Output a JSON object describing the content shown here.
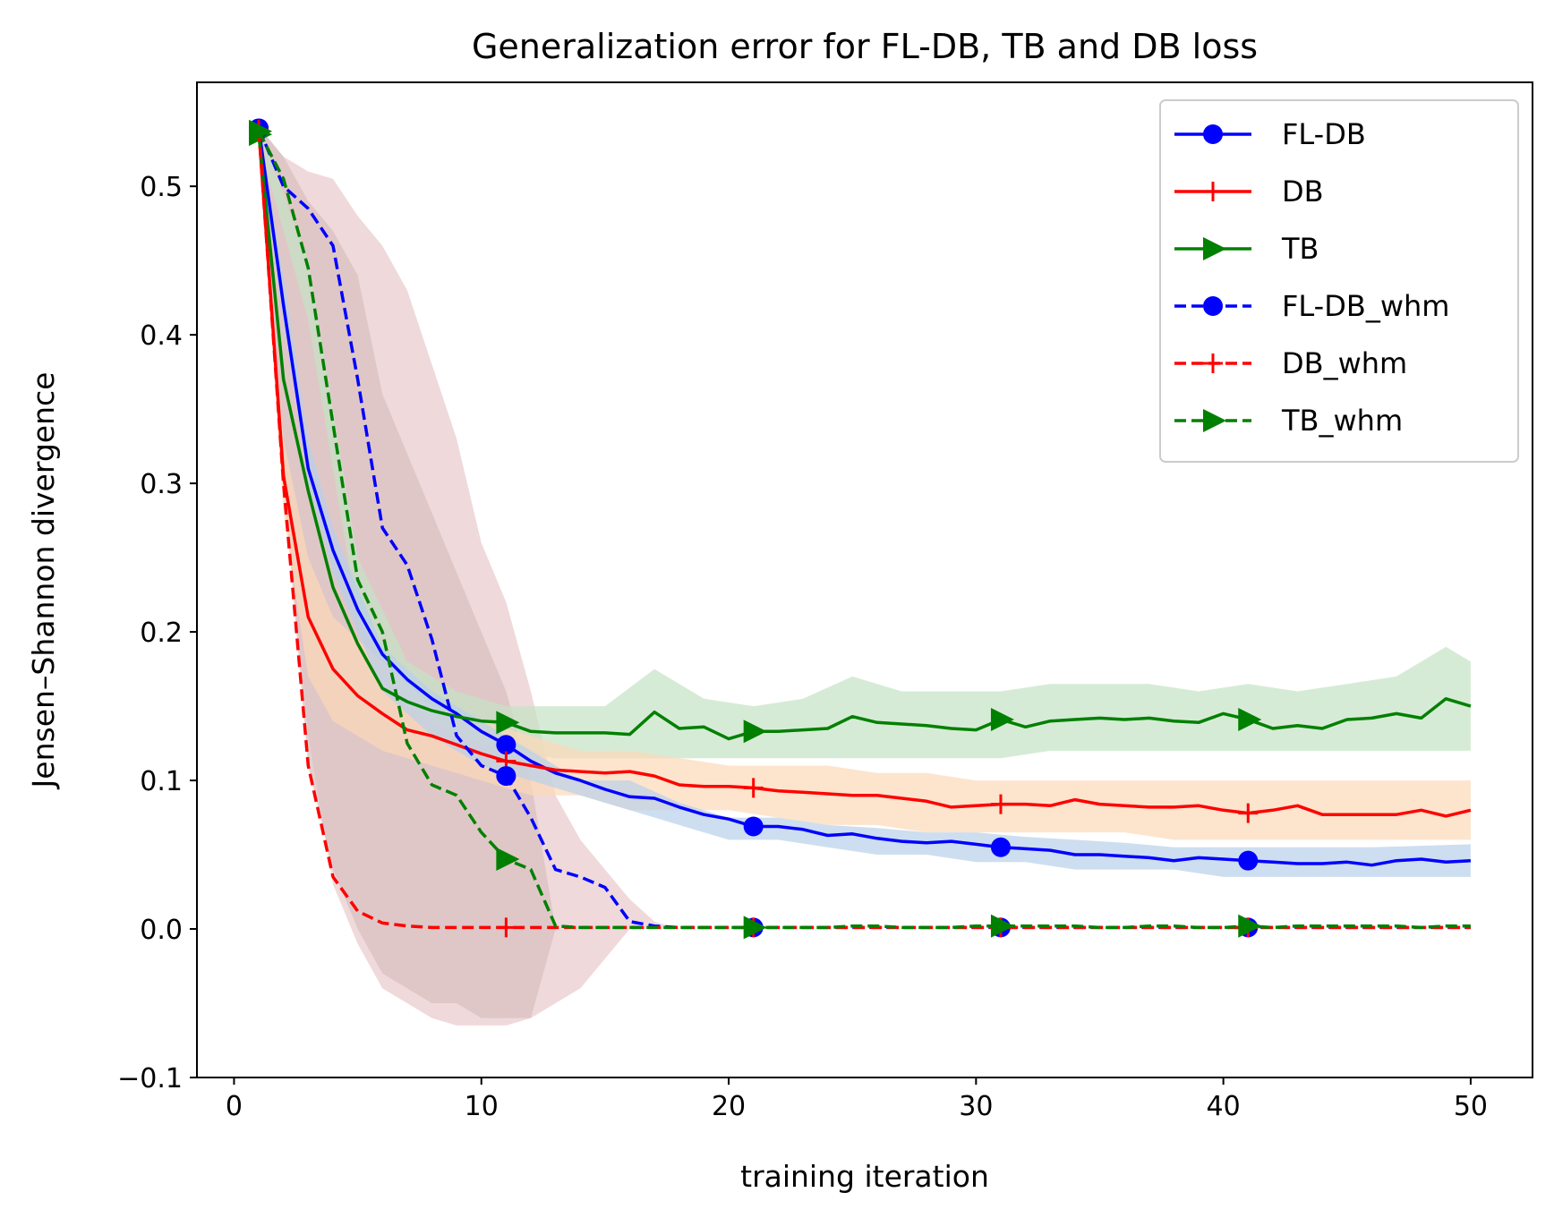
{
  "chart_data": {
    "type": "line",
    "title": "Generalization error for FL-DB, TB and DB loss",
    "xlabel": "training iteration",
    "ylabel": "Jensen–Shannon divergence",
    "xlim": [
      -1.5,
      52.5
    ],
    "ylim": [
      -0.1,
      0.57
    ],
    "xticks": [
      0,
      10,
      20,
      30,
      40,
      50
    ],
    "yticks": [
      -0.1,
      0.0,
      0.1,
      0.2,
      0.3,
      0.4,
      0.5
    ],
    "ytick_labels": [
      "−0.1",
      "0.0",
      "0.1",
      "0.2",
      "0.3",
      "0.4",
      "0.5"
    ],
    "legend_position": "top-right",
    "bands": [
      {
        "name": "FL-DB_whm band",
        "color": "#e8c9cc",
        "x": [
          1,
          2,
          3,
          4,
          5,
          6,
          7,
          8,
          9,
          10,
          11,
          12,
          13,
          14,
          15,
          16,
          17,
          18
        ],
        "lower": [
          0.54,
          0.3,
          0.13,
          0.03,
          -0.01,
          -0.04,
          -0.05,
          -0.06,
          -0.065,
          -0.065,
          -0.065,
          -0.06,
          -0.05,
          -0.04,
          -0.02,
          0,
          0,
          0
        ],
        "upper": [
          0.54,
          0.52,
          0.51,
          0.505,
          0.48,
          0.46,
          0.43,
          0.38,
          0.33,
          0.26,
          0.22,
          0.16,
          0.09,
          0.06,
          0.04,
          0.02,
          0.005,
          0
        ]
      },
      {
        "name": "DB_whm band",
        "color": "#d8bfbf",
        "x": [
          1,
          2,
          3,
          4,
          5,
          6,
          7,
          8,
          9,
          10,
          11,
          12,
          13
        ],
        "lower": [
          0.54,
          0.3,
          0.11,
          0.04,
          0.0,
          -0.03,
          -0.04,
          -0.05,
          -0.05,
          -0.06,
          -0.06,
          -0.06,
          0
        ],
        "upper": [
          0.54,
          0.52,
          0.49,
          0.47,
          0.44,
          0.36,
          0.32,
          0.28,
          0.24,
          0.2,
          0.16,
          0.1,
          0
        ]
      },
      {
        "name": "TB band",
        "color": "#c5e3c5",
        "x": [
          1,
          3,
          5,
          7,
          9,
          11,
          13,
          15,
          17,
          19,
          21,
          23,
          25,
          27,
          29,
          31,
          33,
          35,
          37,
          39,
          41,
          43,
          45,
          47,
          49,
          50
        ],
        "lower": [
          0.53,
          0.41,
          0.21,
          0.15,
          0.13,
          0.12,
          0.115,
          0.115,
          0.115,
          0.115,
          0.115,
          0.115,
          0.115,
          0.115,
          0.115,
          0.115,
          0.12,
          0.12,
          0.12,
          0.12,
          0.12,
          0.12,
          0.12,
          0.12,
          0.12,
          0.12
        ],
        "upper": [
          0.54,
          0.45,
          0.25,
          0.18,
          0.16,
          0.15,
          0.15,
          0.15,
          0.175,
          0.155,
          0.15,
          0.155,
          0.17,
          0.16,
          0.16,
          0.16,
          0.165,
          0.165,
          0.165,
          0.16,
          0.165,
          0.16,
          0.165,
          0.17,
          0.19,
          0.18
        ]
      },
      {
        "name": "DB band",
        "color": "#fcd8b8",
        "x": [
          1,
          2,
          3,
          4,
          6,
          8,
          10,
          12,
          14,
          16,
          18,
          20,
          22,
          24,
          26,
          28,
          30,
          32,
          34,
          36,
          38,
          40,
          42,
          44,
          46,
          48,
          50
        ],
        "lower": [
          0.53,
          0.28,
          0.17,
          0.14,
          0.12,
          0.11,
          0.1,
          0.09,
          0.09,
          0.08,
          0.08,
          0.08,
          0.075,
          0.07,
          0.07,
          0.065,
          0.065,
          0.065,
          0.065,
          0.065,
          0.06,
          0.06,
          0.06,
          0.06,
          0.06,
          0.06,
          0.06
        ],
        "upper": [
          0.54,
          0.33,
          0.25,
          0.21,
          0.18,
          0.15,
          0.14,
          0.13,
          0.12,
          0.12,
          0.115,
          0.11,
          0.11,
          0.11,
          0.105,
          0.105,
          0.1,
          0.1,
          0.1,
          0.1,
          0.1,
          0.1,
          0.1,
          0.1,
          0.1,
          0.1,
          0.1
        ]
      },
      {
        "name": "FL-DB band",
        "color": "#b8d0ea",
        "x": [
          1,
          2,
          3,
          4,
          6,
          8,
          10,
          12,
          14,
          16,
          18,
          20,
          22,
          24,
          26,
          28,
          30,
          32,
          34,
          36,
          38,
          40,
          42,
          44,
          46,
          48,
          50
        ],
        "lower": [
          0.53,
          0.41,
          0.3,
          0.24,
          0.16,
          0.13,
          0.11,
          0.1,
          0.09,
          0.08,
          0.07,
          0.06,
          0.06,
          0.055,
          0.05,
          0.05,
          0.045,
          0.045,
          0.04,
          0.04,
          0.04,
          0.035,
          0.035,
          0.035,
          0.035,
          0.035,
          0.035
        ],
        "upper": [
          0.54,
          0.44,
          0.33,
          0.27,
          0.19,
          0.16,
          0.14,
          0.12,
          0.1,
          0.1,
          0.085,
          0.075,
          0.075,
          0.07,
          0.068,
          0.065,
          0.065,
          0.062,
          0.06,
          0.058,
          0.055,
          0.055,
          0.055,
          0.055,
          0.055,
          0.056,
          0.057
        ]
      }
    ],
    "series": [
      {
        "name": "FL-DB",
        "color": "#0000ff",
        "dash": "solid",
        "marker": "circle",
        "x": [
          1,
          2,
          3,
          4,
          5,
          6,
          7,
          8,
          9,
          10,
          11,
          12,
          13,
          14,
          15,
          16,
          17,
          18,
          19,
          20,
          21,
          22,
          23,
          24,
          25,
          26,
          27,
          28,
          29,
          30,
          31,
          32,
          33,
          34,
          35,
          36,
          37,
          38,
          39,
          40,
          41,
          42,
          43,
          44,
          45,
          46,
          47,
          48,
          49,
          50
        ],
        "y": [
          0.539,
          0.42,
          0.31,
          0.255,
          0.215,
          0.185,
          0.168,
          0.155,
          0.145,
          0.133,
          0.124,
          0.113,
          0.105,
          0.1,
          0.094,
          0.089,
          0.088,
          0.082,
          0.077,
          0.074,
          0.069,
          0.069,
          0.067,
          0.063,
          0.064,
          0.061,
          0.059,
          0.058,
          0.059,
          0.057,
          0.055,
          0.054,
          0.053,
          0.05,
          0.05,
          0.049,
          0.048,
          0.046,
          0.048,
          0.047,
          0.046,
          0.045,
          0.044,
          0.044,
          0.045,
          0.043,
          0.046,
          0.047,
          0.045,
          0.046
        ]
      },
      {
        "name": "DB",
        "color": "#ff0000",
        "dash": "solid",
        "marker": "plus",
        "x": [
          1,
          2,
          3,
          4,
          5,
          6,
          7,
          8,
          9,
          10,
          11,
          12,
          13,
          14,
          15,
          16,
          17,
          18,
          19,
          20,
          21,
          22,
          23,
          24,
          25,
          26,
          27,
          28,
          29,
          30,
          31,
          32,
          33,
          34,
          35,
          36,
          37,
          38,
          39,
          40,
          41,
          42,
          43,
          44,
          45,
          46,
          47,
          48,
          49,
          50
        ],
        "y": [
          0.538,
          0.305,
          0.21,
          0.175,
          0.157,
          0.145,
          0.134,
          0.13,
          0.124,
          0.118,
          0.113,
          0.11,
          0.107,
          0.106,
          0.105,
          0.106,
          0.103,
          0.097,
          0.096,
          0.096,
          0.095,
          0.093,
          0.092,
          0.091,
          0.09,
          0.09,
          0.088,
          0.086,
          0.082,
          0.083,
          0.084,
          0.084,
          0.083,
          0.087,
          0.084,
          0.083,
          0.082,
          0.082,
          0.083,
          0.08,
          0.078,
          0.08,
          0.083,
          0.077,
          0.077,
          0.077,
          0.077,
          0.08,
          0.076,
          0.08
        ]
      },
      {
        "name": "TB",
        "color": "#008000",
        "dash": "solid",
        "marker": "triangle",
        "x": [
          1,
          2,
          3,
          4,
          5,
          6,
          7,
          8,
          9,
          10,
          11,
          12,
          13,
          14,
          15,
          16,
          17,
          18,
          19,
          20,
          21,
          22,
          23,
          24,
          25,
          26,
          27,
          28,
          29,
          30,
          31,
          32,
          33,
          34,
          35,
          36,
          37,
          38,
          39,
          40,
          41,
          42,
          43,
          44,
          45,
          46,
          47,
          48,
          49,
          50
        ],
        "y": [
          0.535,
          0.37,
          0.295,
          0.23,
          0.192,
          0.162,
          0.153,
          0.147,
          0.143,
          0.14,
          0.139,
          0.133,
          0.132,
          0.132,
          0.132,
          0.131,
          0.146,
          0.135,
          0.136,
          0.128,
          0.133,
          0.133,
          0.134,
          0.135,
          0.143,
          0.139,
          0.138,
          0.137,
          0.135,
          0.134,
          0.141,
          0.136,
          0.14,
          0.141,
          0.142,
          0.141,
          0.142,
          0.14,
          0.139,
          0.145,
          0.141,
          0.135,
          0.137,
          0.135,
          0.141,
          0.142,
          0.145,
          0.142,
          0.155,
          0.15
        ]
      },
      {
        "name": "FL-DB_whm",
        "color": "#0000ff",
        "dash": "dashed",
        "marker": "circle",
        "x": [
          1,
          2,
          3,
          4,
          5,
          6,
          7,
          8,
          9,
          10,
          11,
          12,
          13,
          14,
          15,
          16,
          17,
          18,
          19,
          20,
          21,
          22,
          23,
          24,
          25,
          26,
          27,
          28,
          29,
          30,
          31,
          32,
          33,
          34,
          35,
          36,
          37,
          38,
          39,
          40,
          41,
          42,
          43,
          44,
          45,
          46,
          47,
          48,
          49,
          50
        ],
        "y": [
          0.539,
          0.5,
          0.485,
          0.46,
          0.37,
          0.27,
          0.245,
          0.195,
          0.13,
          0.11,
          0.103,
          0.075,
          0.04,
          0.035,
          0.028,
          0.005,
          0.002,
          0.001,
          0.001,
          0.001,
          0.001,
          0.001,
          0.001,
          0.001,
          0.001,
          0.001,
          0.001,
          0.001,
          0.001,
          0.001,
          0.001,
          0.001,
          0.001,
          0.001,
          0.001,
          0.001,
          0.001,
          0.001,
          0.001,
          0.001,
          0.001,
          0.001,
          0.001,
          0.001,
          0.001,
          0.001,
          0.001,
          0.001,
          0.001,
          0.001
        ]
      },
      {
        "name": "DB_whm",
        "color": "#ff0000",
        "dash": "dashed",
        "marker": "plus",
        "x": [
          1,
          2,
          3,
          4,
          5,
          6,
          7,
          8,
          9,
          10,
          11,
          12,
          13,
          14,
          15,
          16,
          17,
          18,
          19,
          20,
          21,
          22,
          23,
          24,
          25,
          26,
          27,
          28,
          29,
          30,
          31,
          32,
          33,
          34,
          35,
          36,
          37,
          38,
          39,
          40,
          41,
          42,
          43,
          44,
          45,
          46,
          47,
          48,
          49,
          50
        ],
        "y": [
          0.538,
          0.3,
          0.11,
          0.035,
          0.012,
          0.004,
          0.002,
          0.001,
          0.001,
          0.001,
          0.001,
          0.001,
          0.001,
          0.001,
          0.001,
          0.001,
          0.001,
          0.001,
          0.001,
          0.001,
          0.001,
          0.001,
          0.001,
          0.001,
          0.001,
          0.001,
          0.001,
          0.001,
          0.001,
          0.001,
          0.001,
          0.001,
          0.001,
          0.001,
          0.001,
          0.001,
          0.001,
          0.001,
          0.001,
          0.001,
          0.001,
          0.001,
          0.001,
          0.001,
          0.001,
          0.001,
          0.001,
          0.001,
          0.001,
          0.001
        ]
      },
      {
        "name": "TB_whm",
        "color": "#008000",
        "dash": "dashed",
        "marker": "triangle",
        "x": [
          1,
          2,
          3,
          4,
          5,
          6,
          7,
          8,
          9,
          10,
          11,
          12,
          13,
          14,
          15,
          16,
          17,
          18,
          19,
          20,
          21,
          22,
          23,
          24,
          25,
          26,
          27,
          28,
          29,
          30,
          31,
          32,
          33,
          34,
          35,
          36,
          37,
          38,
          39,
          40,
          41,
          42,
          43,
          44,
          45,
          46,
          47,
          48,
          49,
          50
        ],
        "y": [
          0.537,
          0.505,
          0.445,
          0.34,
          0.235,
          0.2,
          0.125,
          0.097,
          0.09,
          0.065,
          0.047,
          0.04,
          0.002,
          0.001,
          0.001,
          0.001,
          0.001,
          0.001,
          0.001,
          0.001,
          0.001,
          0.001,
          0.001,
          0.001,
          0.002,
          0.002,
          0.001,
          0.001,
          0.001,
          0.002,
          0.002,
          0.002,
          0.002,
          0.002,
          0.001,
          0.001,
          0.002,
          0.002,
          0.001,
          0.001,
          0.002,
          0.001,
          0.002,
          0.002,
          0.002,
          0.002,
          0.002,
          0.001,
          0.002,
          0.002
        ]
      }
    ]
  }
}
